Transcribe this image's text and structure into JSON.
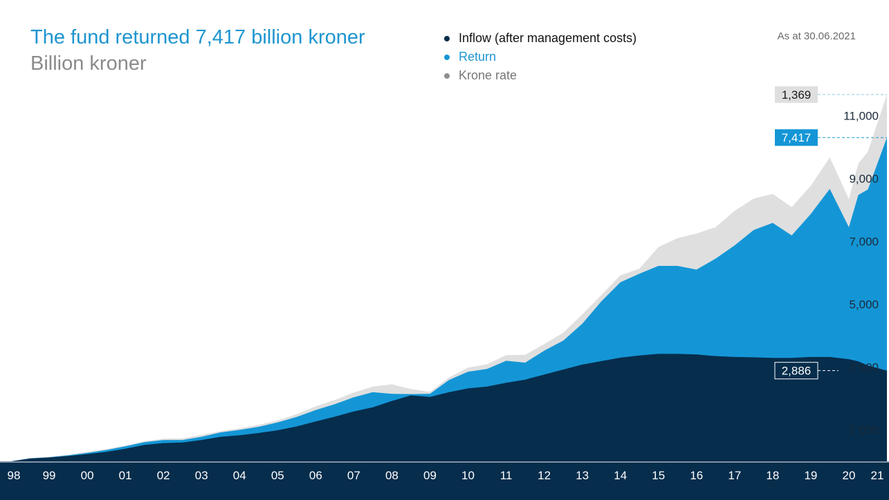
{
  "title": "The fund returned 7,417 billion kroner",
  "subtitle": "Billion kroner",
  "as_at": "As at 30.06.2021",
  "colors": {
    "inflow": "#062d4c",
    "return": "#1496d6",
    "krone": "#dfdfdf",
    "title": "#1e95cf"
  },
  "chart_data": {
    "type": "area",
    "stacked": true,
    "legend_position": "top-center",
    "ylim": [
      0,
      12000
    ],
    "y_ticks": [
      {
        "value": 1000,
        "label": "1 000"
      },
      {
        "value": 3000,
        "label": "3 000"
      },
      {
        "value": 5000,
        "label": "5,000"
      },
      {
        "value": 7000,
        "label": "7,000"
      },
      {
        "value": 9000,
        "label": "9,000"
      },
      {
        "value": 11000,
        "label": "11,000"
      }
    ],
    "x_ticks": [
      "98",
      "99",
      "00",
      "01",
      "02",
      "03",
      "04",
      "05",
      "06",
      "07",
      "08",
      "09",
      "10",
      "11",
      "12",
      "13",
      "14",
      "15",
      "16",
      "17",
      "18",
      "19",
      "20",
      "21"
    ],
    "x": [
      1998.0,
      1998.5,
      1999.0,
      1999.5,
      2000.0,
      2000.5,
      2001.0,
      2001.5,
      2002.0,
      2002.5,
      2003.0,
      2003.5,
      2004.0,
      2004.5,
      2005.0,
      2005.5,
      2006.0,
      2006.5,
      2007.0,
      2007.5,
      2008.0,
      2008.5,
      2009.0,
      2009.5,
      2010.0,
      2010.5,
      2011.0,
      2011.5,
      2012.0,
      2012.5,
      2013.0,
      2013.5,
      2014.0,
      2014.5,
      2015.0,
      2015.5,
      2016.0,
      2016.5,
      2017.0,
      2017.5,
      2018.0,
      2018.5,
      2019.0,
      2019.5,
      2020.0,
      2020.25,
      2020.5,
      2021.0
    ],
    "series": [
      {
        "name": "Inflow (after management costs)",
        "values": [
          0,
          90,
          120,
          170,
          230,
          300,
          400,
          520,
          580,
          600,
          680,
          780,
          830,
          900,
          990,
          1110,
          1270,
          1420,
          1590,
          1720,
          1920,
          2100,
          2050,
          2200,
          2320,
          2380,
          2500,
          2600,
          2760,
          2920,
          3080,
          3190,
          3300,
          3370,
          3420,
          3420,
          3400,
          3350,
          3320,
          3310,
          3290,
          3290,
          3320,
          3320,
          3250,
          3180,
          3050,
          2886
        ]
      },
      {
        "name": "Return",
        "values": [
          0,
          5,
          10,
          20,
          40,
          60,
          80,
          90,
          100,
          80,
          100,
          140,
          170,
          200,
          250,
          300,
          360,
          400,
          450,
          480,
          230,
          40,
          100,
          390,
          530,
          560,
          700,
          540,
          760,
          920,
          1300,
          1900,
          2400,
          2600,
          2800,
          2800,
          2700,
          3100,
          3550,
          4050,
          4300,
          3900,
          4550,
          5350,
          4200,
          5300,
          5600,
          7417
        ]
      },
      {
        "name": "Krone rate",
        "values": [
          0,
          10,
          15,
          20,
          30,
          30,
          20,
          30,
          40,
          50,
          60,
          40,
          50,
          60,
          60,
          90,
          120,
          130,
          150,
          180,
          300,
          160,
          60,
          80,
          130,
          150,
          180,
          250,
          210,
          250,
          300,
          200,
          220,
          160,
          600,
          880,
          1150,
          1000,
          1100,
          1000,
          920,
          900,
          900,
          1000,
          900,
          1000,
          1200,
          1369
        ]
      }
    ],
    "callouts": [
      {
        "series": "Krone rate",
        "label": "1,369",
        "y": 11672
      },
      {
        "series": "Return",
        "label": "7,417",
        "y": 10303
      },
      {
        "series": "Inflow (after management costs)",
        "label": "2,886",
        "y": 2886
      }
    ]
  }
}
